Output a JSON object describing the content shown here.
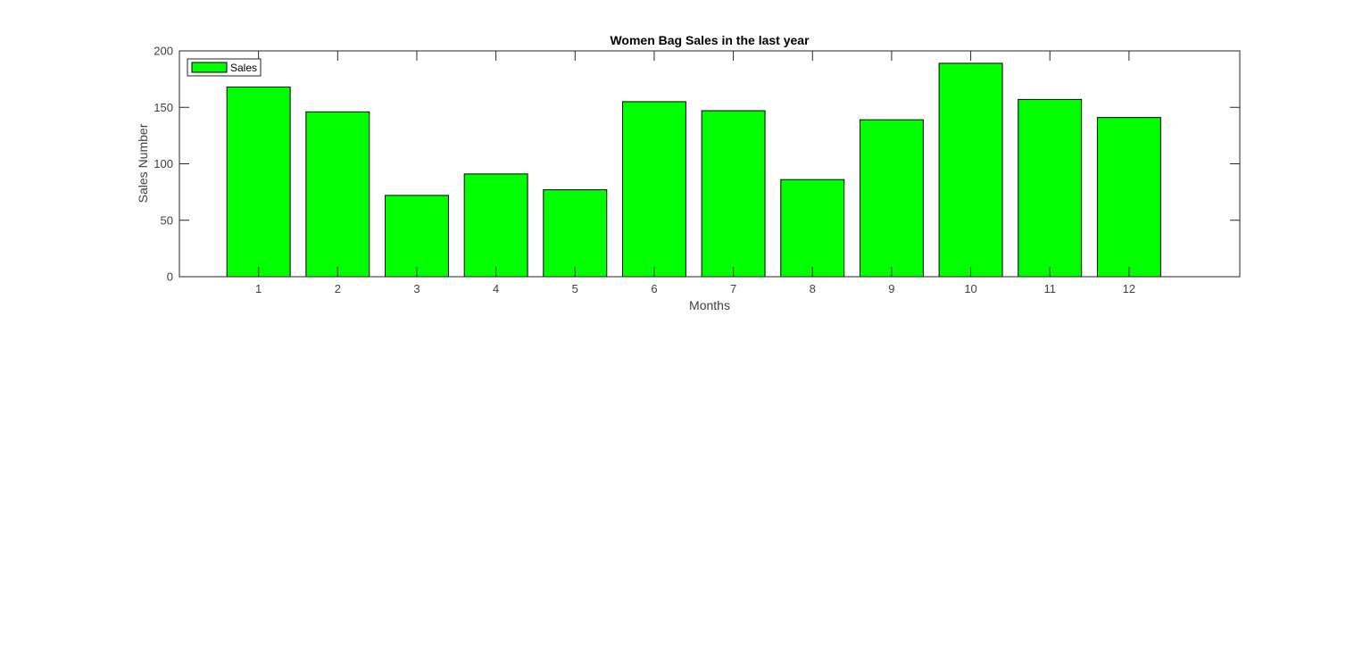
{
  "chart_data": {
    "type": "bar",
    "title": "Women Bag Sales  in the last year",
    "xlabel": "Months",
    "ylabel": "Sales Number",
    "categories": [
      "1",
      "2",
      "3",
      "4",
      "5",
      "6",
      "7",
      "8",
      "9",
      "10",
      "11",
      "12"
    ],
    "series": [
      {
        "name": "Sales",
        "values": [
          168,
          146,
          72,
          91,
          77,
          155,
          147,
          86,
          139,
          189,
          157,
          141
        ]
      }
    ],
    "xlim": [
      0.0,
      13.4
    ],
    "ylim": [
      0,
      200
    ],
    "yticks": [
      "0",
      "50",
      "100",
      "150",
      "200"
    ],
    "grid": false,
    "legend_position": "top-left",
    "colors": {
      "bar_fill": "#00ff00",
      "bar_edge": "#000000",
      "axes": "#262626",
      "background": "#ffffff"
    }
  }
}
